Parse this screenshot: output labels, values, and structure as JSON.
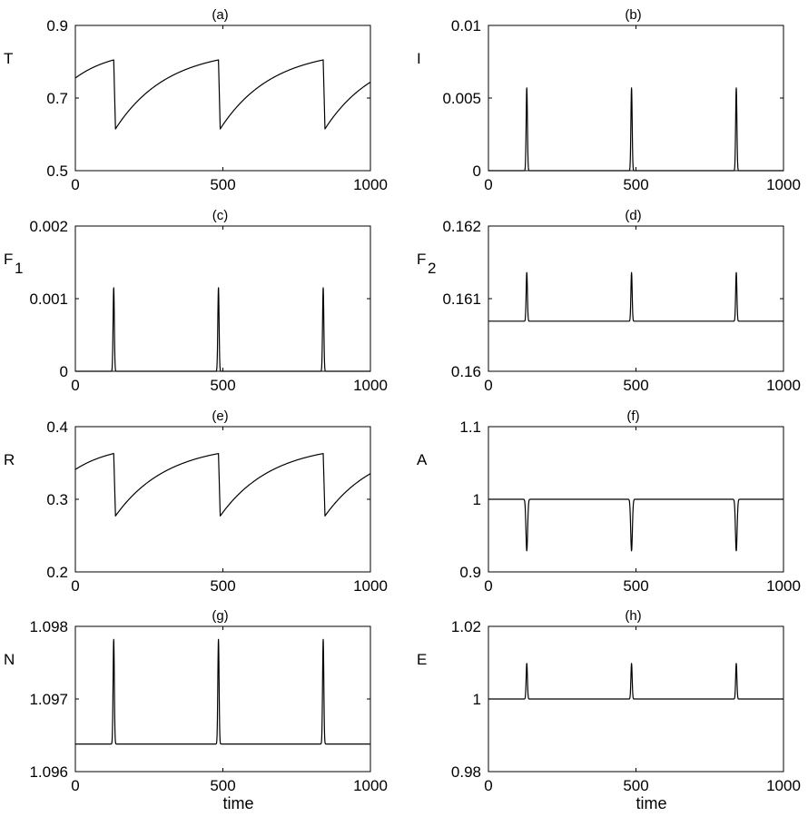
{
  "chart_data": [
    {
      "panel": "(a)",
      "type": "line",
      "title": "(a)",
      "ylabel": "T",
      "ylabel_sub": "",
      "xlabel": "",
      "xlim": [
        0,
        1000
      ],
      "xticks": [
        "0",
        "500",
        "1000"
      ],
      "ylim": [
        0.5,
        0.9
      ],
      "yticks": [
        "0.5",
        "0.7",
        "0.9"
      ],
      "series": [
        {
          "shape": "sawtooth",
          "color": "#000000",
          "period": 355,
          "first_drop": 130,
          "start": 0.755,
          "high": 0.805,
          "low": 0.615,
          "drop_width": 6
        }
      ]
    },
    {
      "panel": "(b)",
      "type": "line",
      "title": "(b)",
      "ylabel": "I",
      "ylabel_sub": "",
      "xlabel": "",
      "xlim": [
        0,
        1000
      ],
      "xticks": [
        "0",
        "500",
        "1000"
      ],
      "ylim": [
        0,
        0.01
      ],
      "yticks": [
        "0",
        "0.005",
        "0.01"
      ],
      "series": [
        {
          "shape": "spikes",
          "color": "#000000",
          "peaks_at": [
            130,
            485,
            840
          ],
          "baseline": 0.0,
          "peak": 0.0057,
          "width": 3
        }
      ]
    },
    {
      "panel": "(c)",
      "type": "line",
      "title": "(c)",
      "ylabel": "F",
      "ylabel_sub": "1",
      "xlabel": "",
      "xlim": [
        0,
        1000
      ],
      "xticks": [
        "0",
        "500",
        "1000"
      ],
      "ylim": [
        0,
        0.002
      ],
      "yticks": [
        "0",
        "0.001",
        "0.002"
      ],
      "series": [
        {
          "shape": "spikes",
          "color": "#000000",
          "peaks_at": [
            130,
            485,
            840
          ],
          "baseline": 0.0,
          "peak": 0.00115,
          "width": 3
        }
      ]
    },
    {
      "panel": "(d)",
      "type": "line",
      "title": "(d)",
      "ylabel": "F",
      "ylabel_sub": "2",
      "xlabel": "",
      "xlim": [
        0,
        1000
      ],
      "xticks": [
        "0",
        "500",
        "1000"
      ],
      "ylim": [
        0.16,
        0.162
      ],
      "yticks": [
        "0.16",
        "0.161",
        "0.162"
      ],
      "series": [
        {
          "shape": "spikes",
          "color": "#000000",
          "peaks_at": [
            130,
            485,
            840
          ],
          "baseline": 0.16069,
          "peak": 0.16136,
          "width": 3
        }
      ]
    },
    {
      "panel": "(e)",
      "type": "line",
      "title": "(e)",
      "ylabel": "R",
      "ylabel_sub": "",
      "xlabel": "",
      "xlim": [
        0,
        1000
      ],
      "xticks": [
        "0",
        "500",
        "1000"
      ],
      "ylim": [
        0.2,
        0.4
      ],
      "yticks": [
        "0.2",
        "0.3",
        "0.4"
      ],
      "series": [
        {
          "shape": "sawtooth",
          "color": "#000000",
          "period": 355,
          "first_drop": 130,
          "start": 0.341,
          "high": 0.363,
          "low": 0.277,
          "drop_width": 6
        }
      ]
    },
    {
      "panel": "(f)",
      "type": "line",
      "title": "(f)",
      "ylabel": "A",
      "ylabel_sub": "",
      "xlabel": "",
      "xlim": [
        0,
        1000
      ],
      "xticks": [
        "0",
        "500",
        "1000"
      ],
      "ylim": [
        0.9,
        1.1
      ],
      "yticks": [
        "0.9",
        "1",
        "1.1"
      ],
      "series": [
        {
          "shape": "spikes",
          "color": "#000000",
          "peaks_at": [
            130,
            485,
            840
          ],
          "baseline": 1.0,
          "peak": 0.929,
          "width": 4
        }
      ]
    },
    {
      "panel": "(g)",
      "type": "line",
      "title": "(g)",
      "ylabel": "N",
      "ylabel_sub": "",
      "xlabel": "time",
      "xlim": [
        0,
        1000
      ],
      "xticks": [
        "0",
        "500",
        "1000"
      ],
      "ylim": [
        1.096,
        1.098
      ],
      "yticks": [
        "1.096",
        "1.097",
        "1.098"
      ],
      "series": [
        {
          "shape": "spikes",
          "color": "#000000",
          "peaks_at": [
            130,
            485,
            840
          ],
          "baseline": 1.09638,
          "peak": 1.09782,
          "width": 3
        }
      ]
    },
    {
      "panel": "(h)",
      "type": "line",
      "title": "(h)",
      "ylabel": "E",
      "ylabel_sub": "",
      "xlabel": "time",
      "xlim": [
        0,
        1000
      ],
      "xticks": [
        "0",
        "500",
        "1000"
      ],
      "ylim": [
        0.98,
        1.02
      ],
      "yticks": [
        "0.98",
        "1",
        "1.02"
      ],
      "series": [
        {
          "shape": "spikes",
          "color": "#000000",
          "peaks_at": [
            130,
            485,
            840
          ],
          "baseline": 1.0,
          "peak": 1.0098,
          "width": 3
        }
      ]
    }
  ]
}
